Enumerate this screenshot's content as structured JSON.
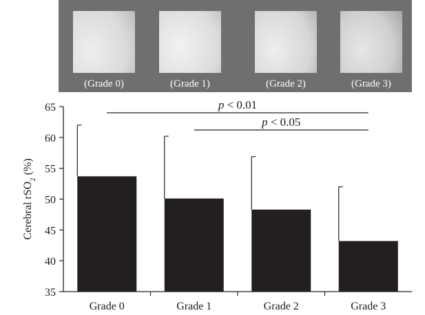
{
  "image_panel": {
    "labels": [
      "(Grade 0)",
      "(Grade 1)",
      "(Grade 2)",
      "(Grade 3)"
    ]
  },
  "chart_data": {
    "type": "bar",
    "categories": [
      "Grade 0",
      "Grade 1",
      "Grade 2",
      "Grade 3"
    ],
    "values": [
      53.7,
      50.1,
      48.3,
      43.2
    ],
    "error_upper": [
      62.0,
      60.2,
      56.9,
      52.0
    ],
    "ylabel_main": "Cerebral rSO",
    "ylabel_sub": "2",
    "ylabel_unit": " (%)",
    "ylim": [
      35,
      65
    ],
    "yticks": [
      35,
      40,
      45,
      50,
      55,
      60,
      65
    ],
    "grid": false,
    "bar_color": "#231f20",
    "annotations": [
      {
        "p_symbol": "p",
        "text": " < 0.01",
        "from_category": 0,
        "to_category": 3
      },
      {
        "p_symbol": "p",
        "text": " < 0.05",
        "from_category": 1,
        "to_category": 3
      }
    ]
  }
}
